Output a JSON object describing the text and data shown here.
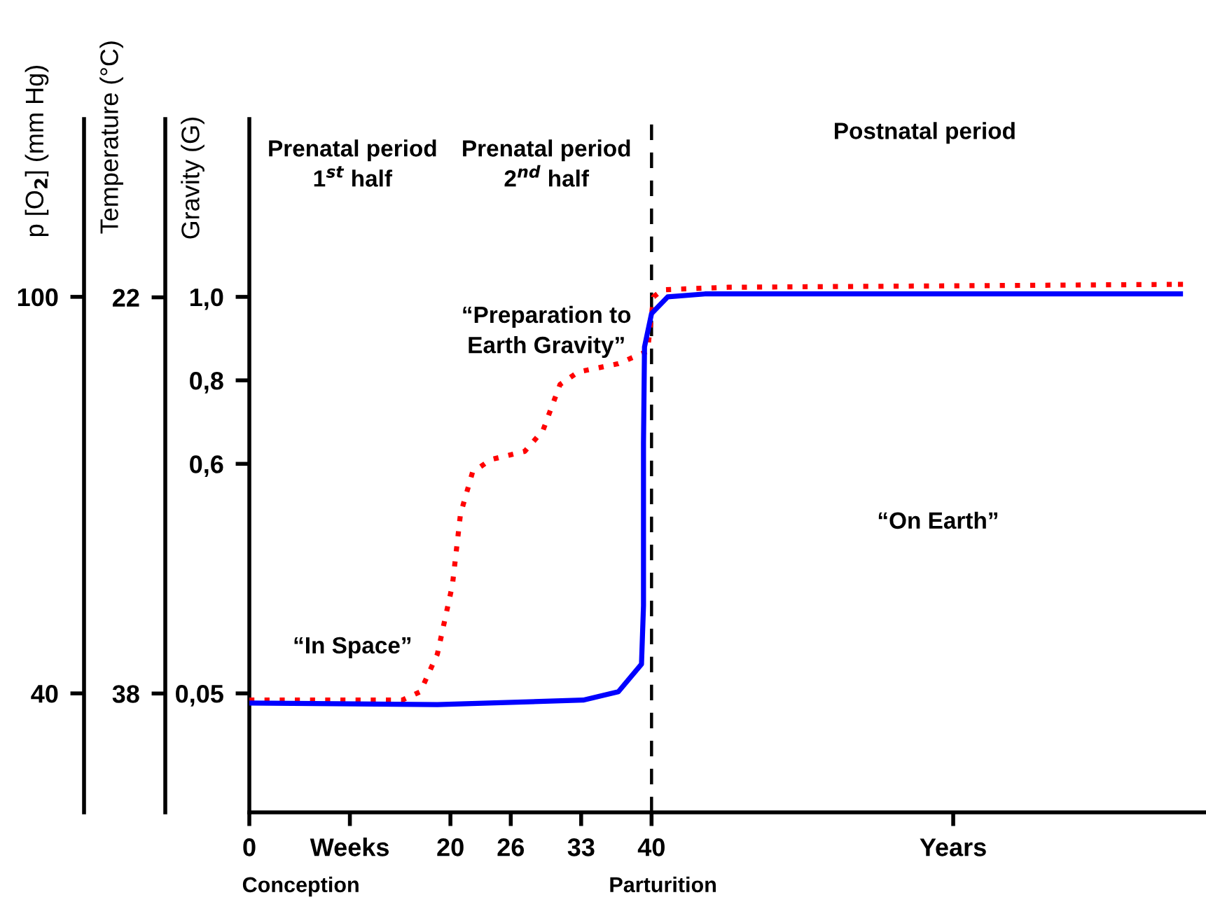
{
  "chart_data": {
    "type": "line",
    "ylabel": "Gravity (G)",
    "y2label": "Temperature (°C)",
    "y3label": "p [O$_{2}$] (mm Hg)",
    "xlim": [
      0,
      95
    ],
    "xticks": [
      0,
      {
        "value": 10,
        "label": "Weeks"
      },
      20,
      26,
      33,
      40,
      {
        "value": 70,
        "label": "Years"
      }
    ],
    "ylim": [
      -0.235,
      1.426
    ],
    "yticks": [
      {
        "value": 0.05,
        "label": "0,05"
      },
      {
        "value": 0.6,
        "label": "0,6"
      },
      {
        "value": 0.8,
        "label": "0,8"
      },
      {
        "value": 1.0,
        "label": "1,0"
      }
    ],
    "y2lim": [
      42.8,
      14.8
    ],
    "y2ticks": [
      22,
      38
    ],
    "y3lim": [
      22.0,
      126.9
    ],
    "y3ticks": [
      40,
      100
    ],
    "grid": false,
    "legend": false,
    "series": [
      {
        "color": "#ff0000",
        "line_style": "dotted",
        "x": [
          0,
          15.2,
          17,
          18.7,
          20.2,
          21,
          22.2,
          24,
          27.4,
          29.2,
          30.9,
          32.7,
          36.7,
          39.6,
          40.2,
          41.1,
          47.6,
          92.6
        ],
        "values": [
          0.034,
          0.034,
          0.054,
          0.144,
          0.31,
          0.48,
          0.58,
          0.61,
          0.63,
          0.68,
          0.79,
          0.82,
          0.84,
          0.87,
          1.0,
          1.017,
          1.023,
          1.03
        ]
      },
      {
        "color": "#0000ff",
        "line_style": "solid",
        "x": [
          0,
          18.7,
          33.2,
          36.7,
          39.0,
          39.2,
          39.2,
          39.3,
          40,
          41.6,
          45.3,
          92.6
        ],
        "values": [
          0.027,
          0.023,
          0.034,
          0.054,
          0.12,
          0.26,
          0.65,
          0.88,
          0.96,
          1.0,
          1.007,
          1.007
        ]
      }
    ],
    "ref_lines": [
      {
        "axis": "x",
        "value": 40,
        "color": "#000000",
        "line_style": "dashed"
      }
    ],
    "annotations": [
      "Prenatal period\n1$^{st}$ half",
      "Prenatal period\n2$^{nd}$ half",
      "Postnatal period",
      "“Preparation to\nEarth Gravity”",
      "“In Space”",
      "“On Earth”",
      "Conception",
      "Parturition"
    ]
  }
}
